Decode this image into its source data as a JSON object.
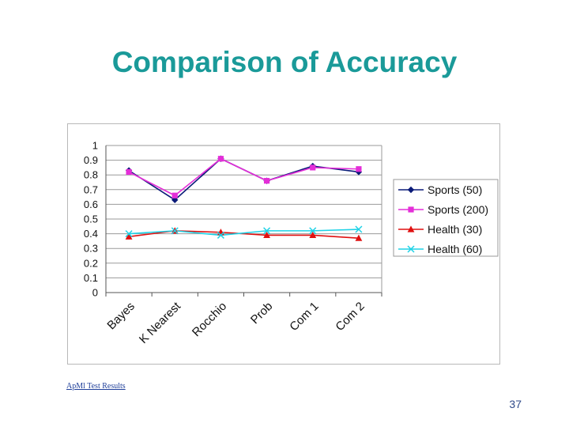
{
  "slide": {
    "title": "Comparison of Accuracy",
    "footnote": "ApMl Test Results",
    "page_number": "37"
  },
  "chart_data": {
    "type": "line",
    "categories": [
      "Bayes",
      "K Nearest",
      "Rocchio",
      "Prob",
      "Com 1",
      "Com 2"
    ],
    "ylim": [
      0,
      1
    ],
    "yticks": [
      "0",
      "0.1",
      "0.2",
      "0.3",
      "0.4",
      "0.5",
      "0.6",
      "0.7",
      "0.8",
      "0.9",
      "1"
    ],
    "grid": true,
    "legend_position": "right",
    "series": [
      {
        "name": "Sports (50)",
        "values": [
          0.83,
          0.63,
          0.91,
          0.76,
          0.86,
          0.82
        ],
        "color": "#0a1a78",
        "marker": "diamond"
      },
      {
        "name": "Sports (200)",
        "values": [
          0.82,
          0.66,
          0.91,
          0.76,
          0.85,
          0.84
        ],
        "color": "#e42ed8",
        "marker": "square"
      },
      {
        "name": "Health (30)",
        "values": [
          0.38,
          0.42,
          0.41,
          0.39,
          0.39,
          0.37
        ],
        "color": "#e01010",
        "marker": "triangle"
      },
      {
        "name": "Health (60)",
        "values": [
          0.4,
          0.42,
          0.39,
          0.42,
          0.42,
          0.43
        ],
        "color": "#1ed2e6",
        "marker": "x"
      }
    ]
  }
}
